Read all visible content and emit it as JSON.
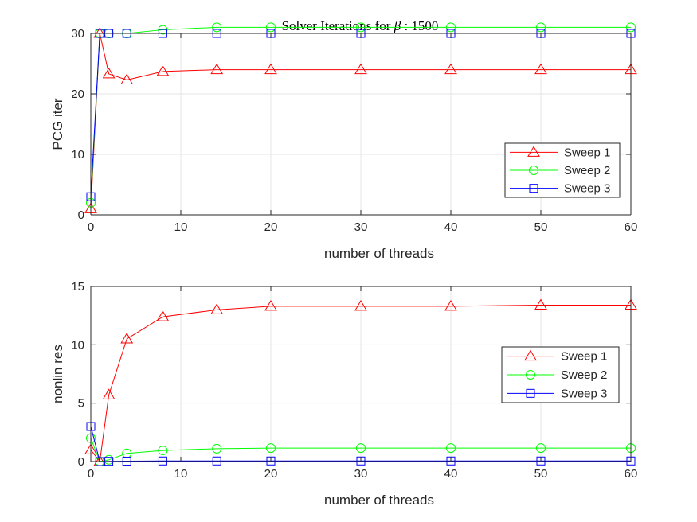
{
  "figure": {
    "title_prefix": "Solver Iterations for ",
    "title_symbol": "β",
    "title_suffix": " : 1500"
  },
  "colors": {
    "sweep1": "#ff0000",
    "sweep2": "#00ff00",
    "sweep3": "#0000ff",
    "axis": "#262626",
    "grid": "#e6e6e6"
  },
  "chart_data": [
    {
      "type": "line",
      "xlabel": "number of threads",
      "ylabel": "PCG iter",
      "xlim": [
        0,
        60
      ],
      "ylim": [
        0,
        30
      ],
      "xticks": [
        0,
        10,
        20,
        30,
        40,
        50,
        60
      ],
      "yticks": [
        0,
        10,
        20,
        30
      ],
      "grid": true,
      "legend_position": "right",
      "x": [
        0,
        1,
        2,
        4,
        8,
        14,
        20,
        30,
        40,
        50,
        60
      ],
      "series": [
        {
          "name": "Sweep 1",
          "marker": "triangle",
          "color": "#ff0000",
          "values": [
            1,
            30,
            23.3,
            22.3,
            23.7,
            24,
            24,
            24,
            24,
            24,
            24
          ]
        },
        {
          "name": "Sweep 2",
          "marker": "circle",
          "color": "#00ff00",
          "values": [
            2,
            30,
            30,
            30,
            30.6,
            31,
            31,
            31,
            31,
            31,
            31
          ]
        },
        {
          "name": "Sweep 3",
          "marker": "square",
          "color": "#0000ff",
          "values": [
            3,
            30,
            30,
            30,
            30,
            30,
            30,
            30,
            30,
            30,
            30
          ]
        }
      ]
    },
    {
      "type": "line",
      "xlabel": "number of threads",
      "ylabel": "nonlin res",
      "xlim": [
        0,
        60
      ],
      "ylim": [
        0,
        15
      ],
      "xticks": [
        0,
        10,
        20,
        30,
        40,
        50,
        60
      ],
      "yticks": [
        0,
        5,
        10,
        15
      ],
      "grid": true,
      "legend_position": "right",
      "x": [
        0,
        1,
        2,
        4,
        8,
        14,
        20,
        30,
        40,
        50,
        60
      ],
      "series": [
        {
          "name": "Sweep 1",
          "marker": "triangle",
          "color": "#ff0000",
          "values": [
            1,
            0,
            5.7,
            10.5,
            12.4,
            13,
            13.3,
            13.3,
            13.3,
            13.4,
            13.4
          ]
        },
        {
          "name": "Sweep 2",
          "marker": "circle",
          "color": "#00ff00",
          "values": [
            2,
            0,
            0.15,
            0.7,
            0.95,
            1.1,
            1.15,
            1.15,
            1.15,
            1.15,
            1.15
          ]
        },
        {
          "name": "Sweep 3",
          "marker": "square",
          "color": "#0000ff",
          "values": [
            3,
            0,
            0.02,
            0.03,
            0.05,
            0.05,
            0.05,
            0.05,
            0.05,
            0.05,
            0.05
          ]
        }
      ]
    }
  ]
}
